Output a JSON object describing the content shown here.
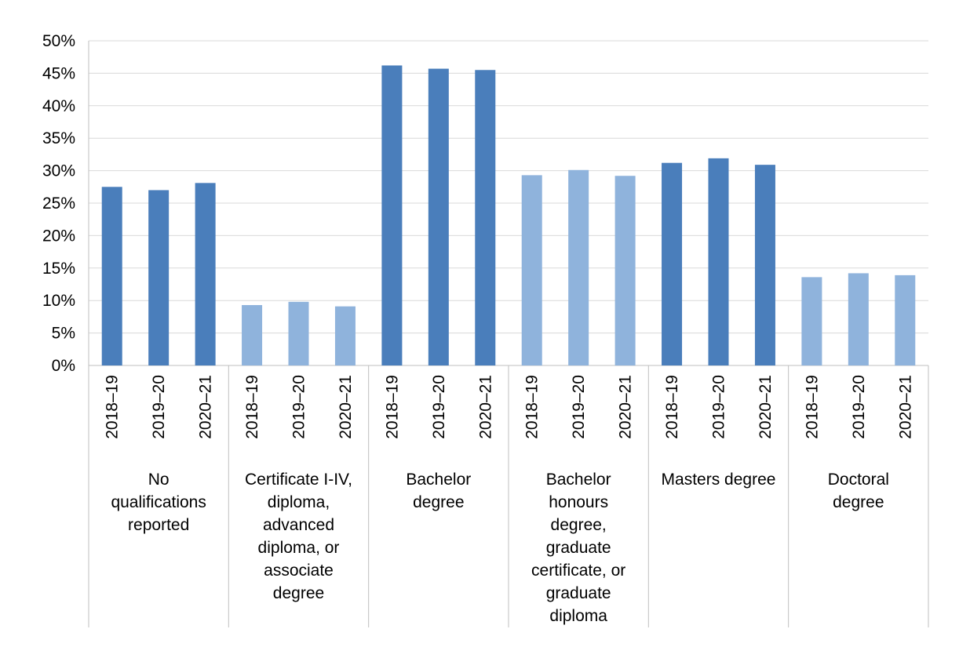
{
  "chart_data": {
    "type": "bar",
    "title": "",
    "xlabel": "",
    "ylabel": "",
    "ylim": [
      0,
      50
    ],
    "yticks": [
      "0%",
      "5%",
      "10%",
      "15%",
      "20%",
      "25%",
      "30%",
      "35%",
      "40%",
      "45%",
      "50%"
    ],
    "grid": true,
    "legend": "none",
    "groups": [
      {
        "label_lines": [
          "No",
          "qualifications",
          "reported"
        ],
        "color": "#4a7ebb",
        "categories": [
          "2018–19",
          "2019–20",
          "2020–21"
        ],
        "values": [
          27.5,
          27.0,
          28.1
        ]
      },
      {
        "label_lines": [
          "Certificate I-IV,",
          "diploma,",
          "advanced",
          "diploma, or",
          "associate",
          "degree"
        ],
        "color": "#8fb3dc",
        "categories": [
          "2018–19",
          "2019–20",
          "2020–21"
        ],
        "values": [
          9.3,
          9.8,
          9.1
        ]
      },
      {
        "label_lines": [
          "Bachelor",
          "degree"
        ],
        "color": "#4a7ebb",
        "categories": [
          "2018–19",
          "2019–20",
          "2020–21"
        ],
        "values": [
          46.2,
          45.7,
          45.5
        ]
      },
      {
        "label_lines": [
          "Bachelor",
          "honours",
          "degree,",
          "graduate",
          "certificate, or",
          "graduate",
          "diploma"
        ],
        "color": "#8fb3dc",
        "categories": [
          "2018–19",
          "2019–20",
          "2020–21"
        ],
        "values": [
          29.3,
          30.1,
          29.2
        ]
      },
      {
        "label_lines": [
          "Masters degree"
        ],
        "color": "#4a7ebb",
        "categories": [
          "2018–19",
          "2019–20",
          "2020–21"
        ],
        "values": [
          31.2,
          31.9,
          30.9
        ]
      },
      {
        "label_lines": [
          "Doctoral",
          "degree"
        ],
        "color": "#8fb3dc",
        "categories": [
          "2018–19",
          "2019–20",
          "2020–21"
        ],
        "values": [
          13.6,
          14.2,
          13.9
        ]
      }
    ]
  }
}
